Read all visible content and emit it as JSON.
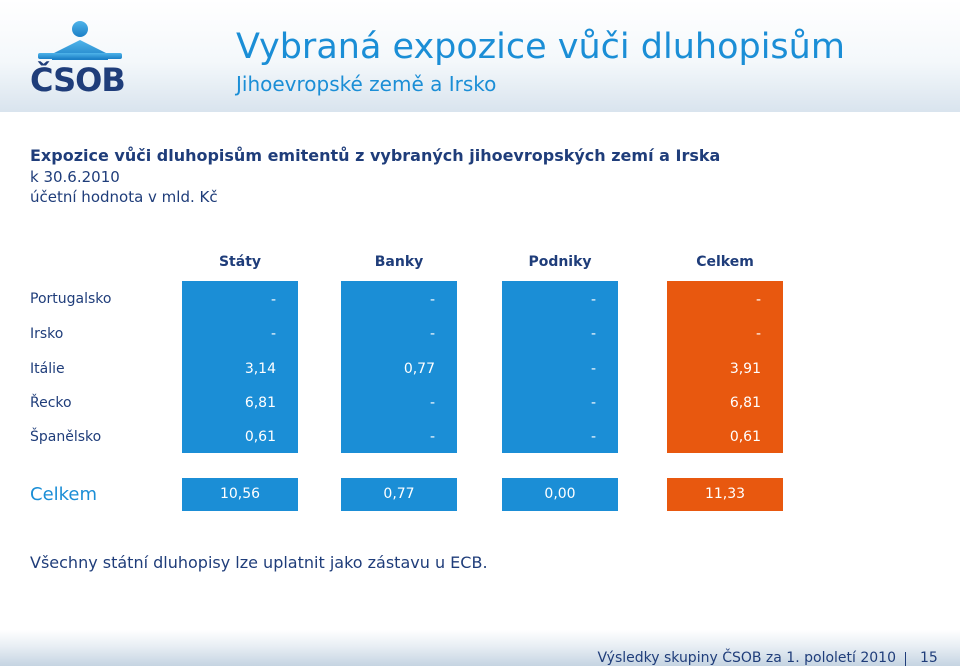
{
  "brand": {
    "logo_text": "ČSOB",
    "colors": {
      "blue": "#1b8ed6",
      "navy": "#1f3d7a",
      "orange": "#e8580f"
    }
  },
  "header": {
    "title": "Vybraná expozice vůči dluhopisům",
    "subtitle": "Jihoevropské země a Irsko"
  },
  "content": {
    "heading": "Expozice vůči dluhopisům emitentů z vybraných jihoevropských zemí a Irska",
    "date_line": "k 30.6.2010",
    "unit_line": "účetní hodnota v mld. Kč"
  },
  "table": {
    "columns": [
      "Státy",
      "Banky",
      "Podniky",
      "Celkem"
    ],
    "rows": [
      {
        "label": "Portugalsko",
        "values": [
          "-",
          "-",
          "-",
          "-"
        ]
      },
      {
        "label": "Irsko",
        "values": [
          "-",
          "-",
          "-",
          "-"
        ]
      },
      {
        "label": "Itálie",
        "values": [
          "3,14",
          "0,77",
          "-",
          "3,91"
        ]
      },
      {
        "label": "Řecko",
        "values": [
          "6,81",
          "-",
          "-",
          "6,81"
        ]
      },
      {
        "label": "Španělsko",
        "values": [
          "0,61",
          "-",
          "-",
          "0,61"
        ]
      }
    ],
    "total": {
      "label": "Celkem",
      "values": [
        "10,56",
        "0,77",
        "0,00",
        "11,33"
      ]
    }
  },
  "note": "Všechny státní dluhopisy lze uplatnit jako zástavu u ECB.",
  "footer": {
    "text": "Výsledky skupiny ČSOB za 1. pololetí 2010",
    "page": "15"
  }
}
